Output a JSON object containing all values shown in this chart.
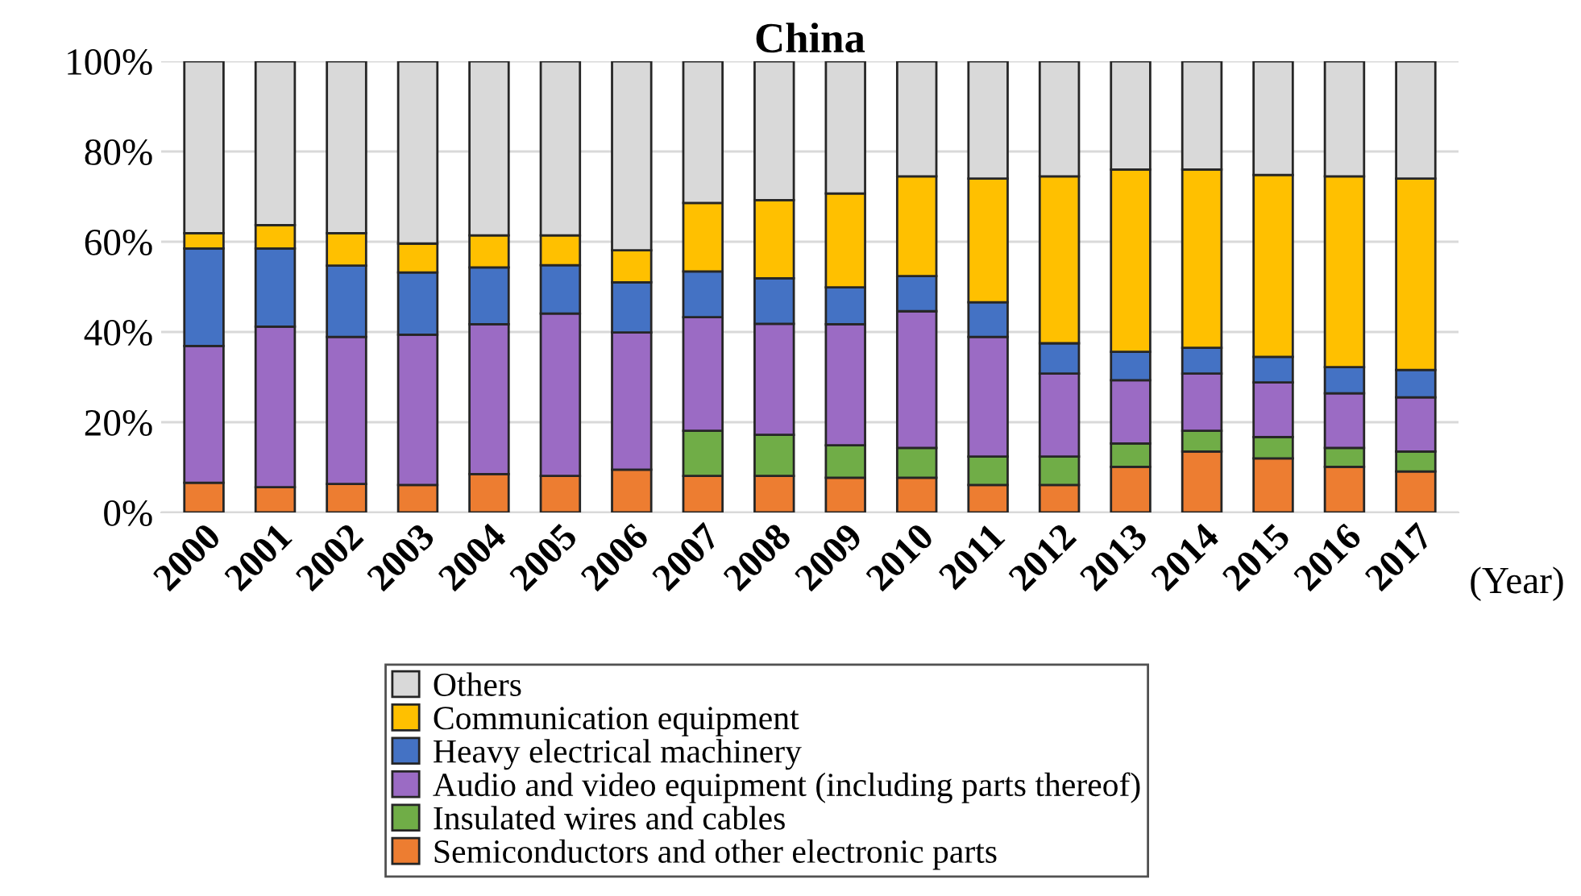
{
  "chart_data": {
    "type": "bar",
    "title": "China",
    "xlabel": "(Year)",
    "stacked": true,
    "grid": "y",
    "legend": "bottom",
    "categories": [
      "2000",
      "2001",
      "2002",
      "2003",
      "2004",
      "2005",
      "2006",
      "2007",
      "2008",
      "2009",
      "2010",
      "2011",
      "2012",
      "2013",
      "2014",
      "2015",
      "2016",
      "2017"
    ],
    "ylim": [
      0,
      100
    ],
    "yticks": [
      {
        "value": 0,
        "label": "0%"
      },
      {
        "value": 20,
        "label": "20%"
      },
      {
        "value": 40,
        "label": "40%"
      },
      {
        "value": 60,
        "label": "60%"
      },
      {
        "value": 80,
        "label": "80%"
      },
      {
        "value": 100,
        "label": "100%"
      }
    ],
    "series": [
      {
        "name": "Semiconductors and other electronic parts",
        "color": "#ed7d31",
        "values": [
          6.6,
          5.6,
          6.3,
          6.1,
          8.5,
          8.1,
          9.5,
          8.1,
          8.1,
          7.7,
          7.7,
          6.1,
          6.1,
          10.1,
          13.5,
          12.0,
          10.1,
          9.1
        ]
      },
      {
        "name": "Insulated wires and cables",
        "color": "#70ad47",
        "values": [
          null,
          null,
          null,
          null,
          null,
          null,
          null,
          10.0,
          9.1,
          7.2,
          6.6,
          6.3,
          6.3,
          5.2,
          4.6,
          4.7,
          4.2,
          4.4
        ]
      },
      {
        "name": "Audio and video equipment (including parts thereof)",
        "color": "#9b6bc4",
        "values": [
          30.3,
          35.6,
          32.6,
          33.3,
          33.2,
          36.0,
          30.4,
          25.2,
          24.6,
          26.8,
          30.3,
          26.5,
          18.4,
          14.0,
          12.7,
          12.1,
          12.1,
          12.0
        ]
      },
      {
        "name": "Heavy electrical machinery",
        "color": "#4472c4",
        "values": [
          21.6,
          17.3,
          15.8,
          13.8,
          12.6,
          10.7,
          11.1,
          10.1,
          10.1,
          8.2,
          7.8,
          7.7,
          6.7,
          6.3,
          5.7,
          5.7,
          5.8,
          6.1
        ]
      },
      {
        "name": "Communication equipment",
        "color": "#ffc000",
        "values": [
          3.4,
          5.2,
          7.2,
          6.4,
          7.1,
          6.6,
          7.1,
          15.2,
          17.3,
          20.8,
          22.1,
          27.4,
          37.0,
          40.4,
          39.5,
          40.3,
          42.3,
          42.4
        ]
      },
      {
        "name": "Others",
        "color": "#d9d9d9",
        "values": [
          38.1,
          36.3,
          38.1,
          40.4,
          38.6,
          38.6,
          41.9,
          31.4,
          30.8,
          29.3,
          25.5,
          26.0,
          25.5,
          24.0,
          24.0,
          25.2,
          25.5,
          26.0
        ]
      }
    ]
  }
}
